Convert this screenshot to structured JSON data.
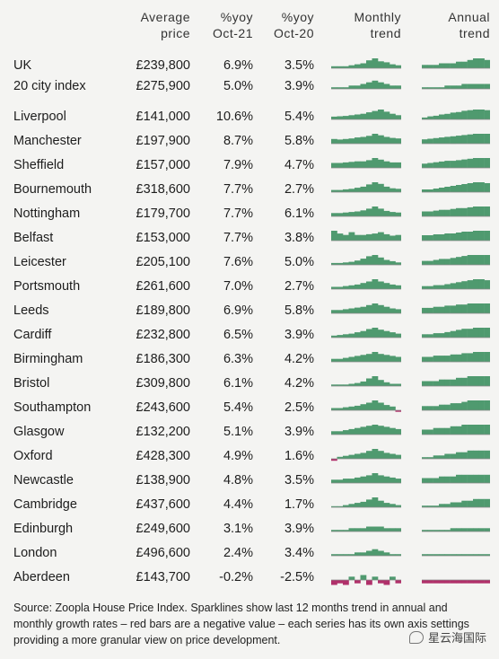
{
  "chart_data": {
    "type": "table",
    "headers": {
      "price": [
        "Average",
        "price"
      ],
      "yoy21": [
        "%yoy",
        "Oct-21"
      ],
      "yoy20": [
        "%yoy",
        "Oct-20"
      ],
      "monthly": [
        "Monthly",
        "trend"
      ],
      "annual": [
        "Annual",
        "trend"
      ]
    },
    "rows": [
      {
        "name": "UK",
        "price": "£239,800",
        "yoy21": "6.9%",
        "yoy20": "3.5%",
        "monthly": [
          0.2,
          0.2,
          0.2,
          0.3,
          0.4,
          0.5,
          0.8,
          1.0,
          0.7,
          0.6,
          0.4,
          0.3
        ],
        "annual": [
          0.2,
          0.2,
          0.2,
          0.3,
          0.3,
          0.3,
          0.4,
          0.4,
          0.5,
          0.6,
          0.6,
          0.5
        ]
      },
      {
        "name": "20 city index",
        "price": "£275,900",
        "yoy21": "5.0%",
        "yoy20": "3.9%",
        "monthly": [
          0.1,
          0.1,
          0.1,
          0.2,
          0.2,
          0.3,
          0.4,
          0.5,
          0.4,
          0.3,
          0.2,
          0.2
        ],
        "annual": [
          0.1,
          0.1,
          0.1,
          0.1,
          0.2,
          0.2,
          0.2,
          0.3,
          0.3,
          0.3,
          0.3,
          0.3
        ]
      },
      {
        "name": "Liverpool",
        "price": "£141,000",
        "yoy21": "10.6%",
        "yoy20": "5.4%",
        "monthly": [
          0.8,
          0.9,
          1.0,
          1.2,
          1.4,
          1.6,
          2.0,
          2.4,
          2.8,
          2.2,
          1.6,
          1.2
        ],
        "annual": [
          0.6,
          1.0,
          1.2,
          1.6,
          1.8,
          2.2,
          2.4,
          2.8,
          3.0,
          3.2,
          3.2,
          3.0
        ]
      },
      {
        "name": "Manchester",
        "price": "£197,900",
        "yoy21": "8.7%",
        "yoy20": "5.8%",
        "monthly": [
          0.9,
          0.8,
          0.9,
          1.0,
          1.2,
          1.3,
          1.5,
          1.9,
          1.6,
          1.3,
          1.1,
          1.0
        ],
        "annual": [
          0.7,
          0.8,
          0.9,
          1.0,
          1.1,
          1.2,
          1.3,
          1.4,
          1.5,
          1.6,
          1.6,
          1.6
        ]
      },
      {
        "name": "Sheffield",
        "price": "£157,000",
        "yoy21": "7.9%",
        "yoy20": "4.7%",
        "monthly": [
          0.9,
          0.9,
          1.0,
          1.1,
          1.2,
          1.2,
          1.4,
          1.8,
          1.5,
          1.2,
          1.0,
          1.0
        ],
        "annual": [
          0.6,
          0.7,
          0.8,
          0.9,
          1.0,
          1.0,
          1.1,
          1.2,
          1.3,
          1.4,
          1.4,
          1.4
        ]
      },
      {
        "name": "Bournemouth",
        "price": "£318,600",
        "yoy21": "7.7%",
        "yoy20": "2.7%",
        "monthly": [
          0.4,
          0.4,
          0.5,
          0.6,
          0.8,
          1.0,
          1.4,
          1.8,
          1.5,
          1.0,
          0.7,
          0.6
        ],
        "annual": [
          0.3,
          0.3,
          0.4,
          0.5,
          0.6,
          0.7,
          0.8,
          0.9,
          1.0,
          1.1,
          1.1,
          1.0
        ]
      },
      {
        "name": "Nottingham",
        "price": "£179,700",
        "yoy21": "7.7%",
        "yoy20": "6.1%",
        "monthly": [
          0.6,
          0.6,
          0.7,
          0.8,
          0.9,
          1.1,
          1.4,
          1.8,
          1.4,
          1.0,
          0.8,
          0.7
        ],
        "annual": [
          0.6,
          0.6,
          0.7,
          0.8,
          0.8,
          0.9,
          1.0,
          1.0,
          1.1,
          1.2,
          1.2,
          1.2
        ]
      },
      {
        "name": "Belfast",
        "price": "£153,000",
        "yoy21": "7.7%",
        "yoy20": "3.8%",
        "monthly": [
          1.4,
          1.0,
          0.8,
          1.2,
          0.8,
          0.8,
          0.9,
          1.0,
          1.2,
          0.9,
          0.7,
          0.8
        ],
        "annual": [
          0.6,
          0.6,
          0.7,
          0.7,
          0.8,
          0.8,
          0.9,
          1.0,
          1.0,
          1.1,
          1.1,
          1.1
        ]
      },
      {
        "name": "Leicester",
        "price": "£205,100",
        "yoy21": "7.6%",
        "yoy20": "5.0%",
        "monthly": [
          0.3,
          0.3,
          0.4,
          0.5,
          0.7,
          1.0,
          1.4,
          1.6,
          1.2,
          0.8,
          0.6,
          0.4
        ],
        "annual": [
          0.4,
          0.4,
          0.5,
          0.6,
          0.6,
          0.7,
          0.8,
          0.9,
          1.0,
          1.0,
          1.0,
          1.0
        ]
      },
      {
        "name": "Portsmouth",
        "price": "£261,600",
        "yoy21": "7.0%",
        "yoy20": "2.7%",
        "monthly": [
          0.3,
          0.3,
          0.4,
          0.5,
          0.6,
          0.8,
          1.0,
          1.3,
          1.0,
          0.8,
          0.6,
          0.5
        ],
        "annual": [
          0.3,
          0.3,
          0.4,
          0.4,
          0.5,
          0.6,
          0.7,
          0.8,
          0.9,
          1.0,
          1.0,
          0.9
        ]
      },
      {
        "name": "Leeds",
        "price": "£189,800",
        "yoy21": "6.9%",
        "yoy20": "5.8%",
        "monthly": [
          0.4,
          0.4,
          0.5,
          0.6,
          0.7,
          0.8,
          1.0,
          1.2,
          1.0,
          0.8,
          0.6,
          0.5
        ],
        "annual": [
          0.5,
          0.5,
          0.6,
          0.6,
          0.7,
          0.7,
          0.8,
          0.8,
          0.9,
          0.9,
          0.9,
          0.9
        ]
      },
      {
        "name": "Cardiff",
        "price": "£232,800",
        "yoy21": "6.5%",
        "yoy20": "3.9%",
        "monthly": [
          0.3,
          0.4,
          0.5,
          0.6,
          0.8,
          1.0,
          1.3,
          1.5,
          1.2,
          1.0,
          0.8,
          0.6
        ],
        "annual": [
          0.3,
          0.3,
          0.4,
          0.4,
          0.5,
          0.6,
          0.7,
          0.8,
          0.8,
          0.9,
          0.9,
          0.9
        ]
      },
      {
        "name": "Birmingham",
        "price": "£186,300",
        "yoy21": "6.3%",
        "yoy20": "4.2%",
        "monthly": [
          0.3,
          0.3,
          0.4,
          0.5,
          0.6,
          0.7,
          0.8,
          1.0,
          0.8,
          0.7,
          0.6,
          0.5
        ],
        "annual": [
          0.4,
          0.4,
          0.5,
          0.5,
          0.5,
          0.6,
          0.6,
          0.7,
          0.7,
          0.8,
          0.8,
          0.8
        ]
      },
      {
        "name": "Bristol",
        "price": "£309,800",
        "yoy21": "6.1%",
        "yoy20": "4.2%",
        "monthly": [
          0.2,
          0.2,
          0.2,
          0.3,
          0.4,
          0.6,
          1.0,
          1.3,
          0.8,
          0.5,
          0.3,
          0.3
        ],
        "annual": [
          0.3,
          0.3,
          0.3,
          0.4,
          0.4,
          0.4,
          0.5,
          0.5,
          0.6,
          0.6,
          0.6,
          0.6
        ]
      },
      {
        "name": "Southampton",
        "price": "£243,600",
        "yoy21": "5.4%",
        "yoy20": "2.5%",
        "monthly": [
          0.3,
          0.3,
          0.4,
          0.5,
          0.6,
          0.8,
          1.0,
          1.3,
          1.0,
          0.7,
          0.5,
          -0.2
        ],
        "annual": [
          0.3,
          0.3,
          0.3,
          0.4,
          0.4,
          0.5,
          0.5,
          0.6,
          0.7,
          0.7,
          0.7,
          0.7
        ]
      },
      {
        "name": "Glasgow",
        "price": "£132,200",
        "yoy21": "5.1%",
        "yoy20": "3.9%",
        "monthly": [
          0.3,
          0.3,
          0.4,
          0.5,
          0.6,
          0.7,
          0.8,
          0.9,
          0.8,
          0.7,
          0.6,
          0.5
        ],
        "annual": [
          0.3,
          0.3,
          0.4,
          0.4,
          0.4,
          0.5,
          0.5,
          0.6,
          0.6,
          0.6,
          0.6,
          0.6
        ]
      },
      {
        "name": "Oxford",
        "price": "£428,300",
        "yoy21": "4.9%",
        "yoy20": "1.6%",
        "monthly": [
          -0.2,
          0.2,
          0.3,
          0.4,
          0.5,
          0.6,
          0.8,
          1.0,
          0.8,
          0.6,
          0.5,
          0.4
        ],
        "annual": [
          0.1,
          0.1,
          0.2,
          0.2,
          0.3,
          0.3,
          0.4,
          0.4,
          0.5,
          0.5,
          0.5,
          0.5
        ]
      },
      {
        "name": "Newcastle",
        "price": "£138,900",
        "yoy21": "4.8%",
        "yoy20": "3.5%",
        "monthly": [
          0.3,
          0.3,
          0.4,
          0.4,
          0.5,
          0.6,
          0.7,
          0.9,
          0.7,
          0.6,
          0.5,
          0.4
        ],
        "annual": [
          0.3,
          0.3,
          0.3,
          0.4,
          0.4,
          0.4,
          0.5,
          0.5,
          0.5,
          0.5,
          0.5,
          0.5
        ]
      },
      {
        "name": "Cambridge",
        "price": "£437,600",
        "yoy21": "4.4%",
        "yoy20": "1.7%",
        "monthly": [
          0.1,
          0.1,
          0.2,
          0.3,
          0.4,
          0.5,
          0.7,
          0.9,
          0.6,
          0.4,
          0.3,
          0.2
        ],
        "annual": [
          0.1,
          0.1,
          0.1,
          0.2,
          0.2,
          0.3,
          0.3,
          0.4,
          0.4,
          0.5,
          0.5,
          0.5
        ]
      },
      {
        "name": "Edinburgh",
        "price": "£249,600",
        "yoy21": "3.1%",
        "yoy20": "3.9%",
        "monthly": [
          0.1,
          0.1,
          0.1,
          0.2,
          0.2,
          0.2,
          0.3,
          0.3,
          0.3,
          0.2,
          0.2,
          0.2
        ],
        "annual": [
          0.1,
          0.1,
          0.1,
          0.1,
          0.1,
          0.2,
          0.2,
          0.2,
          0.2,
          0.2,
          0.2,
          0.2
        ]
      },
      {
        "name": "London",
        "price": "£496,600",
        "yoy21": "2.4%",
        "yoy20": "3.4%",
        "monthly": [
          0.1,
          0.1,
          0.1,
          0.1,
          0.2,
          0.2,
          0.3,
          0.4,
          0.3,
          0.2,
          0.1,
          0.1
        ],
        "annual": [
          0.1,
          0.1,
          0.1,
          0.1,
          0.1,
          0.1,
          0.1,
          0.1,
          0.1,
          0.1,
          0.1,
          0.1
        ]
      },
      {
        "name": "Aberdeen",
        "price": "£143,700",
        "yoy21": "-0.2%",
        "yoy20": "-2.5%",
        "monthly": [
          -0.3,
          -0.2,
          -0.3,
          0.2,
          -0.2,
          0.3,
          -0.3,
          0.2,
          -0.2,
          -0.3,
          0.2,
          -0.2
        ],
        "annual": [
          -0.2,
          -0.2,
          -0.2,
          -0.2,
          -0.2,
          -0.2,
          -0.2,
          -0.2,
          -0.2,
          -0.2,
          -0.2,
          -0.2
        ]
      }
    ],
    "source": "Source: Zoopla House Price Index. Sparklines show last 12 months trend in annual and monthly growth rates – red bars are a negative value – each series has its own axis settings providing a more granular view on price development.",
    "colors": {
      "positive": "#4f9a6f",
      "negative": "#b0306a",
      "baseline": "#8a8a8a"
    }
  },
  "watermark": {
    "label": "星云海国际",
    "icon": "chat-bubble-icon"
  }
}
